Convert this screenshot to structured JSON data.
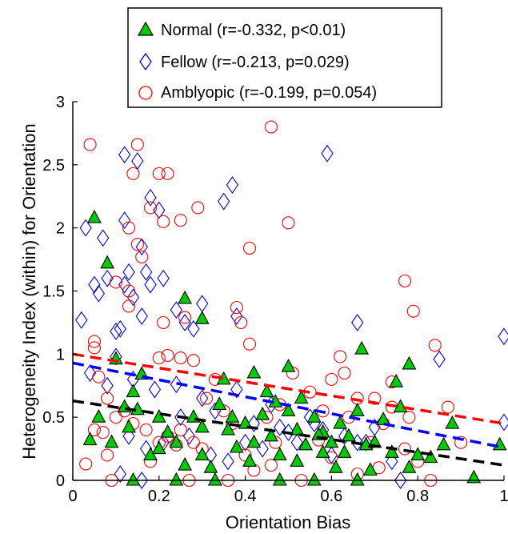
{
  "chart_data": {
    "type": "scatter",
    "title": "",
    "xlabel": "Orientation Bias",
    "ylabel": "Heterogeneity Index (within) for Orientation",
    "xlim": [
      0,
      1
    ],
    "ylim": [
      0,
      3
    ],
    "xticks": [
      "0",
      "0.2",
      "0.4",
      "0.6",
      "0.8",
      "1"
    ],
    "yticks": [
      "0",
      "0.5",
      "1",
      "1.5",
      "2",
      "2.5",
      "3"
    ],
    "grid": false,
    "legend_position": "top-center",
    "series": [
      {
        "name": "Normal (r=-0.332, p<0.01)",
        "marker": "triangle",
        "color": "#00cc00",
        "edge": "#000000",
        "trend": {
          "x": [
            0.0,
            1.0
          ],
          "y": [
            0.63,
            0.12
          ],
          "color": "#000000"
        },
        "points": [
          [
            0.05,
            2.08
          ],
          [
            0.08,
            1.72
          ],
          [
            0.1,
            0.96
          ],
          [
            0.16,
            0.84
          ],
          [
            0.26,
            1.44
          ],
          [
            0.3,
            1.28
          ],
          [
            0.67,
            1.04
          ],
          [
            0.78,
            0.92
          ],
          [
            0.75,
            0.78
          ],
          [
            0.5,
            0.9
          ],
          [
            0.42,
            0.85
          ],
          [
            0.35,
            0.8
          ],
          [
            0.04,
            0.32
          ],
          [
            0.06,
            0.5
          ],
          [
            0.09,
            0.3
          ],
          [
            0.12,
            0.58
          ],
          [
            0.14,
            0.7
          ],
          [
            0.15,
            0.56
          ],
          [
            0.18,
            0.2
          ],
          [
            0.2,
            0.5
          ],
          [
            0.22,
            0.38
          ],
          [
            0.24,
            0.3
          ],
          [
            0.26,
            0.12
          ],
          [
            0.28,
            0.5
          ],
          [
            0.3,
            0.2
          ],
          [
            0.32,
            0.1
          ],
          [
            0.34,
            0.6
          ],
          [
            0.36,
            0.4
          ],
          [
            0.38,
            0.26
          ],
          [
            0.4,
            0.45
          ],
          [
            0.42,
            0.3
          ],
          [
            0.44,
            0.52
          ],
          [
            0.46,
            0.35
          ],
          [
            0.48,
            0.2
          ],
          [
            0.5,
            0.55
          ],
          [
            0.52,
            0.4
          ],
          [
            0.54,
            0.28
          ],
          [
            0.56,
            0.5
          ],
          [
            0.58,
            0.38
          ],
          [
            0.6,
            0.3
          ],
          [
            0.62,
            0.45
          ],
          [
            0.64,
            0.35
          ],
          [
            0.66,
            0.55
          ],
          [
            0.68,
            0.28
          ],
          [
            0.7,
            0.3
          ],
          [
            0.72,
            0.48
          ],
          [
            0.74,
            0.22
          ],
          [
            0.76,
            0.58
          ],
          [
            0.8,
            0.2
          ],
          [
            0.83,
            0.18
          ],
          [
            0.86,
            0.28
          ],
          [
            0.88,
            0.45
          ],
          [
            0.93,
            0.02
          ],
          [
            0.99,
            0.28
          ],
          [
            0.14,
            0.0
          ],
          [
            0.24,
            0.0
          ],
          [
            0.33,
            0.0
          ],
          [
            0.48,
            0.0
          ],
          [
            0.56,
            0.0
          ],
          [
            0.66,
            0.0
          ],
          [
            0.57,
            0.36
          ],
          [
            0.45,
            0.7
          ],
          [
            0.52,
            0.15
          ],
          [
            0.41,
            0.15
          ],
          [
            0.37,
            0.5
          ],
          [
            0.61,
            0.1
          ],
          [
            0.69,
            0.08
          ],
          [
            0.3,
            0.42
          ],
          [
            0.2,
            0.25
          ],
          [
            0.13,
            0.42
          ],
          [
            0.58,
            0.22
          ],
          [
            0.47,
            0.62
          ],
          [
            0.53,
            0.65
          ],
          [
            0.63,
            0.22
          ],
          [
            0.78,
            0.1
          ]
        ]
      },
      {
        "name": "Fellow (r=-0.213, p=0.029)",
        "marker": "diamond",
        "color": "#0000ff",
        "edge": "#0000ff",
        "trend": {
          "x": [
            0.0,
            1.0
          ],
          "y": [
            0.93,
            0.26
          ],
          "color": "#0000ff"
        },
        "points": [
          [
            0.02,
            1.27
          ],
          [
            0.03,
            2.0
          ],
          [
            0.05,
            1.55
          ],
          [
            0.06,
            1.48
          ],
          [
            0.07,
            1.92
          ],
          [
            0.08,
            1.6
          ],
          [
            0.1,
            1.18
          ],
          [
            0.11,
            1.2
          ],
          [
            0.12,
            2.06
          ],
          [
            0.12,
            1.55
          ],
          [
            0.13,
            1.65
          ],
          [
            0.14,
            1.45
          ],
          [
            0.15,
            2.53
          ],
          [
            0.16,
            1.85
          ],
          [
            0.16,
            1.3
          ],
          [
            0.17,
            1.65
          ],
          [
            0.18,
            1.55
          ],
          [
            0.18,
            2.24
          ],
          [
            0.2,
            2.14
          ],
          [
            0.21,
            1.6
          ],
          [
            0.24,
            1.35
          ],
          [
            0.26,
            1.25
          ],
          [
            0.28,
            1.2
          ],
          [
            0.3,
            1.4
          ],
          [
            0.35,
            2.21
          ],
          [
            0.37,
            2.34
          ],
          [
            0.38,
            1.3
          ],
          [
            0.12,
            2.58
          ],
          [
            0.59,
            2.59
          ],
          [
            0.66,
            1.25
          ],
          [
            0.85,
            0.96
          ],
          [
            1.0,
            1.14
          ],
          [
            0.1,
            0.98
          ],
          [
            0.14,
            0.8
          ],
          [
            0.19,
            0.72
          ],
          [
            0.24,
            0.76
          ],
          [
            0.3,
            0.65
          ],
          [
            0.33,
            0.55
          ],
          [
            0.38,
            0.72
          ],
          [
            0.42,
            0.45
          ],
          [
            0.46,
            0.6
          ],
          [
            0.5,
            0.38
          ],
          [
            0.55,
            0.5
          ],
          [
            0.58,
            0.4
          ],
          [
            0.63,
            0.35
          ],
          [
            0.66,
            0.3
          ],
          [
            0.7,
            0.42
          ],
          [
            0.74,
            0.15
          ],
          [
            0.76,
            0.0
          ],
          [
            0.11,
            0.05
          ],
          [
            0.16,
            0.0
          ],
          [
            0.17,
            0.25
          ],
          [
            0.21,
            0.3
          ],
          [
            0.25,
            0.5
          ],
          [
            0.27,
            0.35
          ],
          [
            0.32,
            0.2
          ],
          [
            0.36,
            0.15
          ],
          [
            0.4,
            0.3
          ],
          [
            0.44,
            0.25
          ],
          [
            0.48,
            0.42
          ],
          [
            0.52,
            0.3
          ],
          [
            0.56,
            0.45
          ],
          [
            0.6,
            0.2
          ],
          [
            0.68,
            0.3
          ],
          [
            1.0,
            0.46
          ],
          [
            0.04,
            0.85
          ],
          [
            0.08,
            0.75
          ],
          [
            0.13,
            0.35
          ]
        ]
      },
      {
        "name": "Amblyopic (r=-0.199, p=0.054)",
        "marker": "circle",
        "color": "none",
        "edge": "#ff0000",
        "trend": {
          "x": [
            0.0,
            1.0
          ],
          "y": [
            1.0,
            0.45
          ],
          "color": "#ff0000"
        },
        "points": [
          [
            0.04,
            2.66
          ],
          [
            0.15,
            2.66
          ],
          [
            0.14,
            2.43
          ],
          [
            0.2,
            2.43
          ],
          [
            0.22,
            2.43
          ],
          [
            0.46,
            2.8
          ],
          [
            0.18,
            2.16
          ],
          [
            0.21,
            2.05
          ],
          [
            0.25,
            2.06
          ],
          [
            0.29,
            2.16
          ],
          [
            0.13,
            2.0
          ],
          [
            0.15,
            1.87
          ],
          [
            0.16,
            1.77
          ],
          [
            0.5,
            2.04
          ],
          [
            0.41,
            1.84
          ],
          [
            0.1,
            1.57
          ],
          [
            0.13,
            1.38
          ],
          [
            0.13,
            1.5
          ],
          [
            0.77,
            1.58
          ],
          [
            0.79,
            1.34
          ],
          [
            0.38,
            1.37
          ],
          [
            0.39,
            1.25
          ],
          [
            0.21,
            1.25
          ],
          [
            0.26,
            1.29
          ],
          [
            0.05,
            1.1
          ],
          [
            0.05,
            1.05
          ],
          [
            0.2,
            0.97
          ],
          [
            0.22,
            0.99
          ],
          [
            0.25,
            0.97
          ],
          [
            0.28,
            0.95
          ],
          [
            0.41,
            1.08
          ],
          [
            0.62,
            0.98
          ],
          [
            0.84,
            1.07
          ],
          [
            0.06,
            0.82
          ],
          [
            0.08,
            0.65
          ],
          [
            0.1,
            0.5
          ],
          [
            0.05,
            0.4
          ],
          [
            0.07,
            0.38
          ],
          [
            0.08,
            0.2
          ],
          [
            0.12,
            0.55
          ],
          [
            0.14,
            0.45
          ],
          [
            0.17,
            0.4
          ],
          [
            0.2,
            0.3
          ],
          [
            0.22,
            0.35
          ],
          [
            0.24,
            0.28
          ],
          [
            0.25,
            0.4
          ],
          [
            0.28,
            0.3
          ],
          [
            0.3,
            0.25
          ],
          [
            0.33,
            0.8
          ],
          [
            0.35,
            0.55
          ],
          [
            0.37,
            0.45
          ],
          [
            0.4,
            0.2
          ],
          [
            0.42,
            0.08
          ],
          [
            0.45,
            0.5
          ],
          [
            0.48,
            0.6
          ],
          [
            0.51,
            0.85
          ],
          [
            0.55,
            0.7
          ],
          [
            0.58,
            0.55
          ],
          [
            0.6,
            0.8
          ],
          [
            0.64,
            0.5
          ],
          [
            0.66,
            0.65
          ],
          [
            0.69,
            0.3
          ],
          [
            0.72,
            0.45
          ],
          [
            0.74,
            0.58
          ],
          [
            0.77,
            0.25
          ],
          [
            0.8,
            0.15
          ],
          [
            0.83,
            0.0
          ],
          [
            0.87,
            0.58
          ],
          [
            0.9,
            0.3
          ],
          [
            0.03,
            0.13
          ],
          [
            0.09,
            0.0
          ],
          [
            0.27,
            0.0
          ],
          [
            0.36,
            0.0
          ],
          [
            0.46,
            0.12
          ],
          [
            0.53,
            0.0
          ],
          [
            0.6,
            0.18
          ],
          [
            0.66,
            0.05
          ],
          [
            0.71,
            0.1
          ],
          [
            0.18,
            0.15
          ],
          [
            0.31,
            0.65
          ],
          [
            0.47,
            0.3
          ],
          [
            0.57,
            0.32
          ],
          [
            0.63,
            0.85
          ],
          [
            0.7,
            0.65
          ],
          [
            0.74,
            0.78
          ],
          [
            0.78,
            0.5
          ]
        ]
      }
    ]
  }
}
